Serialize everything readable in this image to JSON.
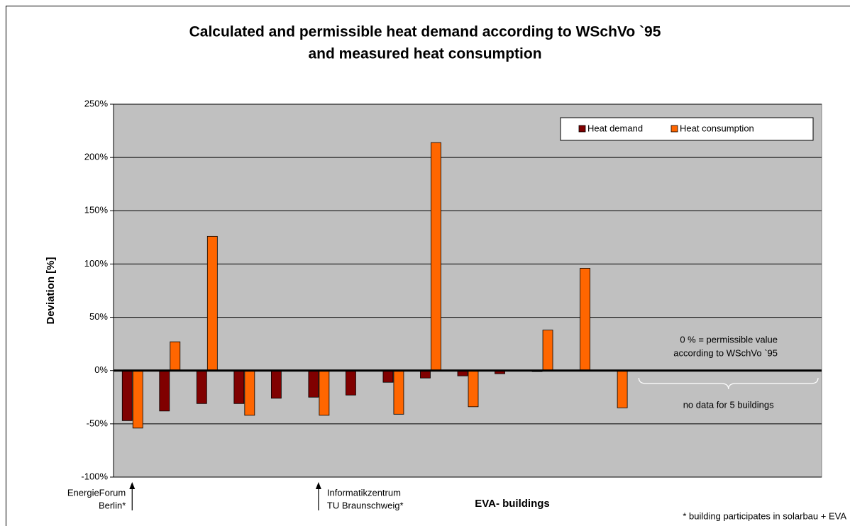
{
  "chart_data": {
    "type": "bar",
    "title": [
      "Calculated and permissible heat demand according to WSchVo `95",
      "and measured heat consumption"
    ],
    "xlabel": "EVA- buildings",
    "ylabel": "Deviation [%]",
    "categories": [
      null,
      null,
      null,
      null,
      null,
      null,
      null,
      null,
      null,
      null,
      null,
      null,
      null,
      null,
      null,
      null,
      null,
      null,
      null
    ],
    "series": [
      {
        "name": "Heat demand",
        "color": "#800000",
        "values": [
          -47,
          -38,
          -31,
          -31,
          -26,
          -25,
          -23,
          -11,
          -7,
          -5,
          -3,
          -1,
          0,
          null,
          null,
          null,
          null,
          null,
          null
        ]
      },
      {
        "name": "Heat consumption",
        "color": "#ff6600",
        "values": [
          -54,
          27,
          126,
          -42,
          null,
          -42,
          null,
          -41,
          214,
          -34,
          null,
          38,
          96,
          -35,
          null,
          null,
          null,
          null,
          null
        ]
      }
    ],
    "ylim": [
      -100,
      250
    ],
    "yticks": [
      {
        "value": -100,
        "label": "-100%"
      },
      {
        "value": -50,
        "label": "-50%"
      },
      {
        "value": 0,
        "label": "0%"
      },
      {
        "value": 50,
        "label": "50%"
      },
      {
        "value": 100,
        "label": "100%"
      },
      {
        "value": 150,
        "label": "150%"
      },
      {
        "value": 200,
        "label": "200%"
      },
      {
        "value": 250,
        "label": "250%"
      }
    ],
    "grid": true,
    "legend": "top-right",
    "annotations": {
      "energieforum": [
        "EnergieForum",
        "Berlin*"
      ],
      "informatik": [
        "Informatikzentrum",
        "TU Braunschweig*"
      ],
      "permissible": [
        "0 % = permissible value",
        "according to WSchVo `95"
      ],
      "nodata": "no data for 5 buildings",
      "footnote": "* building participates in solarbau + EVA"
    }
  }
}
